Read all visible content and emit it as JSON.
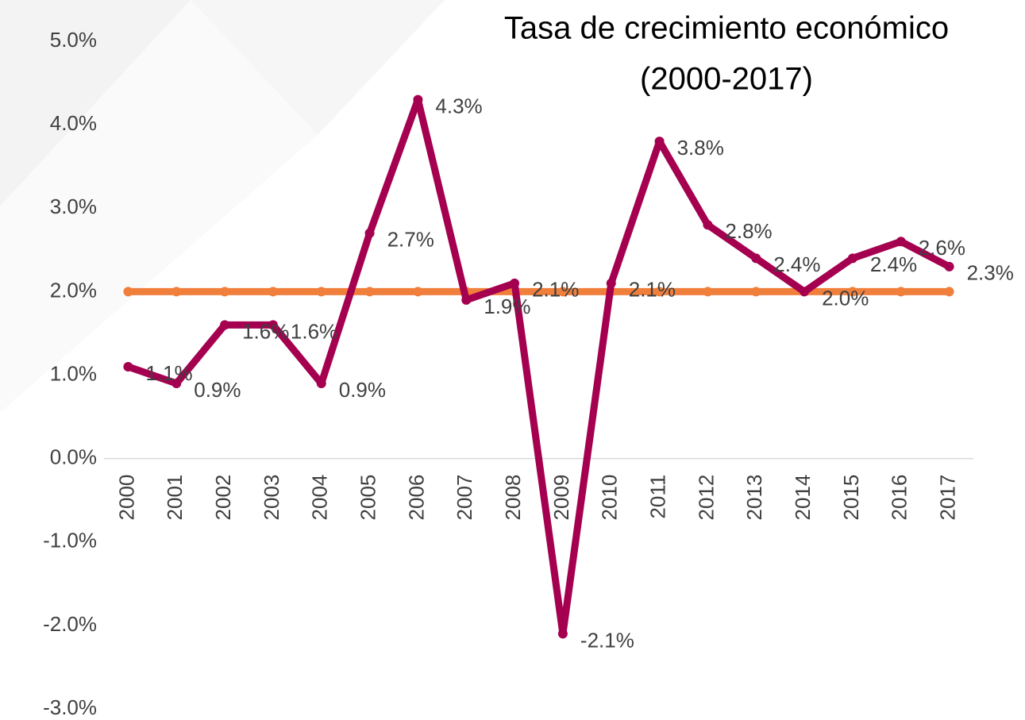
{
  "chart_data": {
    "type": "line",
    "title": [
      "Tasa de crecimiento económico",
      "(2000-2017)"
    ],
    "categories": [
      "2000",
      "2001",
      "2002",
      "2003",
      "2004",
      "2005",
      "2006",
      "2007",
      "2008",
      "2009",
      "2010",
      "2011",
      "2012",
      "2013",
      "2014",
      "2015",
      "2016",
      "2017"
    ],
    "series": [
      {
        "color": "#a50050",
        "values": [
          1.1,
          0.9,
          1.6,
          1.6,
          0.9,
          2.7,
          4.3,
          1.9,
          2.1,
          -2.1,
          2.1,
          3.8,
          2.8,
          2.4,
          2.0,
          2.4,
          2.6,
          2.3
        ],
        "value_labels": [
          "1.1%",
          "0.9%",
          "1.6%",
          "1.6%",
          "0.9%",
          "2.7%",
          "4.3%",
          "1.9%",
          "2.1%",
          "-2.1%",
          "2.1%",
          "3.8%",
          "2.8%",
          "2.4%",
          "2.0%",
          "2.4%",
          "2.6%",
          "2.3%"
        ]
      },
      {
        "color": "#f07f3c",
        "values": [
          2.0,
          2.0,
          2.0,
          2.0,
          2.0,
          2.0,
          2.0,
          2.0,
          2.0,
          2.0,
          2.0,
          2.0,
          2.0,
          2.0,
          2.0,
          2.0,
          2.0,
          2.0
        ]
      }
    ],
    "ylim": [
      -3,
      5
    ],
    "yticks": [
      {
        "value": -3,
        "label": "-3.0%"
      },
      {
        "value": -2,
        "label": "-2.0%"
      },
      {
        "value": -1,
        "label": "-1.0%"
      },
      {
        "value": 0,
        "label": "0.0%"
      },
      {
        "value": 1,
        "label": "1.0%"
      },
      {
        "value": 2,
        "label": "2.0%"
      },
      {
        "value": 3,
        "label": "3.0%"
      },
      {
        "value": 4,
        "label": "4.0%"
      },
      {
        "value": 5,
        "label": "5.0%"
      }
    ],
    "grid": false
  }
}
